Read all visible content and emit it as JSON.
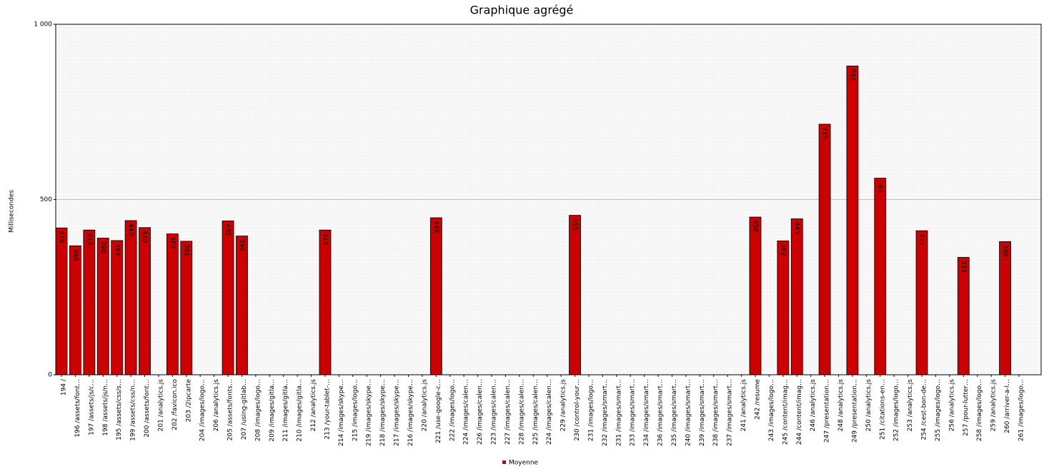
{
  "chart_data": {
    "type": "bar",
    "title": "Graphique agrégé",
    "y_label": "Millisecondes",
    "categories": [
      "194 /",
      "196 /assets/font…",
      "197 /assets/js/c…",
      "198 /assets/js/n…",
      "195 /assets/css/s…",
      "199 /assets/css/n…",
      "200 /assets/font…",
      "201 /analytics.js",
      "202 /favicon.ico",
      "203 /2ipcarte",
      "204 /images/logo…",
      "206 /analytics.js",
      "205 /assets/fonts…",
      "207 /using-gitlab…",
      "208 /images/logo…",
      "209 /images/gitla…",
      "211 /images/gitla…",
      "210 /images/gitla…",
      "212 /analytics.js",
      "213 /your-tablet-…",
      "214 /images/skype…",
      "215 /images/logo…",
      "219 /images/skype…",
      "218 /images/skype…",
      "217 /images/skype…",
      "216 /images/skype…",
      "220 /analytics.js",
      "221 /use-google-c…",
      "222 /images/logo…",
      "224 /images/calen…",
      "226 /images/calen…",
      "223 /images/calen…",
      "227 /images/calen…",
      "228 /images/calen…",
      "225 /images/calen…",
      "224 /images/calen…",
      "229 /analytics.js",
      "230 /control-your…",
      "231 /images/logo…",
      "232 /images/smart…",
      "231 /images/smart…",
      "233 /images/smart…",
      "234 /images/smart…",
      "236 /images/smart…",
      "235 /images/smart…",
      "240 /images/smart…",
      "239 /images/smart…",
      "238 /images/smart…",
      "237 /images/smart…",
      "241 /analytics.js",
      "242 /resume",
      "243 /images/logo…",
      "245 /content/imag…",
      "244 /content/imag…",
      "246 /analytics.js",
      "247 /presentation…",
      "248 /analytics.js",
      "249 /presentation…",
      "250 /analytics.js",
      "251 /citations-en…",
      "252 /images/logo…",
      "253 /analytics.js",
      "254 /cest-bon-de…",
      "255 /images/logo…",
      "256 /analytics.js",
      "257 /pour-lutter…",
      "258 /images/logo…",
      "259 /analytics.js",
      "260 /arriver-a-l…",
      "261 /images/logo…"
    ],
    "series": [
      {
        "name": "Moyenne",
        "color": "#cc0000",
        "values": [
          419,
          368,
          413,
          390,
          383,
          440,
          420,
          null,
          402,
          381,
          null,
          null,
          439,
          396,
          null,
          null,
          null,
          null,
          null,
          413,
          null,
          null,
          null,
          null,
          null,
          null,
          null,
          448,
          null,
          null,
          null,
          null,
          null,
          null,
          null,
          null,
          null,
          455,
          null,
          null,
          null,
          null,
          null,
          null,
          null,
          null,
          null,
          null,
          null,
          null,
          450,
          null,
          382,
          445,
          null,
          715,
          null,
          881,
          null,
          561,
          null,
          null,
          411,
          null,
          null,
          335,
          null,
          null,
          380,
          null
        ]
      }
    ],
    "ylim": [
      0,
      1000
    ],
    "yticks": [
      0,
      500,
      {
        "value": 1000,
        "label": "1 000"
      }
    ],
    "grid": true
  }
}
